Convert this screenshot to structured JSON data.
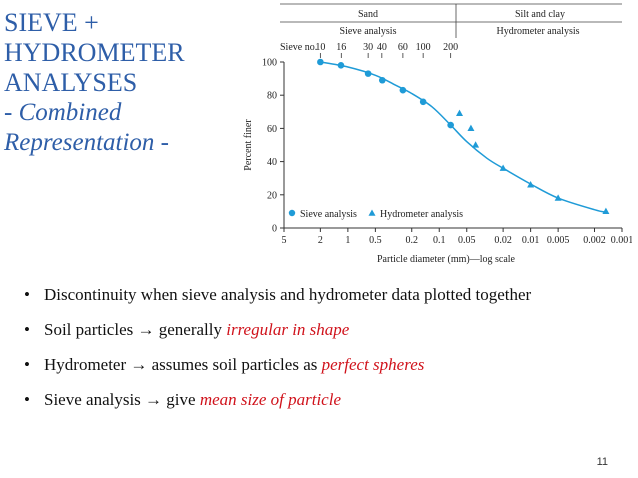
{
  "slide": {
    "title_lines": [
      "SIEVE +",
      "HYDROMETER",
      "ANALYSES"
    ],
    "subtitle_lines": [
      "- Combined",
      "Representation -"
    ],
    "page_number": "11"
  },
  "figure": {
    "header_left": "Sand",
    "header_right": "Silt and clay",
    "sub_left": "Sieve analysis",
    "sub_right": "Hydrometer analysis",
    "sieve_label": "Sieve no.",
    "sieve_numbers": [
      "10",
      "16",
      "30",
      "40",
      "60",
      "100",
      "200"
    ],
    "legend_sieve": "Sieve analysis",
    "legend_hydro": "Hydrometer analysis"
  },
  "chart_data": {
    "type": "scatter",
    "xlabel": "Particle diameter (mm)—log scale",
    "ylabel": "Percent finer",
    "x_scale": "log",
    "x_reversed": true,
    "xlim": [
      5,
      0.001
    ],
    "ylim": [
      0,
      100
    ],
    "x_tick_labels": [
      "5",
      "2",
      "1",
      "0.5",
      "0.2",
      "0.1",
      "0.05",
      "0.02",
      "0.01",
      "0.005",
      "0.002",
      "0.001"
    ],
    "y_tick_labels": [
      "0",
      "20",
      "40",
      "60",
      "80",
      "100"
    ],
    "legend_position": "bottom-left",
    "series": [
      {
        "name": "Sieve analysis",
        "marker": "circle",
        "color": "#1f9bd7",
        "points": [
          [
            2.0,
            100
          ],
          [
            1.19,
            98
          ],
          [
            0.6,
            93
          ],
          [
            0.42,
            89
          ],
          [
            0.25,
            83
          ],
          [
            0.15,
            76
          ],
          [
            0.075,
            62
          ]
        ]
      },
      {
        "name": "Hydrometer analysis",
        "marker": "triangle",
        "color": "#1f9bd7",
        "points": [
          [
            0.06,
            69
          ],
          [
            0.045,
            60
          ],
          [
            0.04,
            50
          ],
          [
            0.02,
            36
          ],
          [
            0.01,
            26
          ],
          [
            0.005,
            18
          ],
          [
            0.0015,
            10
          ]
        ]
      }
    ],
    "curve": {
      "color": "#1f9bd7",
      "points": [
        [
          2.0,
          100
        ],
        [
          1.0,
          97
        ],
        [
          0.5,
          92
        ],
        [
          0.3,
          86
        ],
        [
          0.2,
          81
        ],
        [
          0.12,
          73
        ],
        [
          0.075,
          62
        ],
        [
          0.05,
          52
        ],
        [
          0.03,
          42
        ],
        [
          0.02,
          36
        ],
        [
          0.01,
          26.5
        ],
        [
          0.005,
          18
        ],
        [
          0.002,
          11
        ],
        [
          0.0015,
          9.5
        ]
      ]
    }
  },
  "bullets": [
    {
      "parts": [
        {
          "t": "Discontinuity when sieve analysis and hydrometer data plotted together",
          "s": "normal"
        }
      ]
    },
    {
      "parts": [
        {
          "t": "Soil particles ",
          "s": "normal"
        },
        {
          "t": "→",
          "s": "arrow"
        },
        {
          "t": " generally ",
          "s": "normal"
        },
        {
          "t": "irregular in shape",
          "s": "red"
        }
      ]
    },
    {
      "parts": [
        {
          "t": "Hydrometer ",
          "s": "normal"
        },
        {
          "t": "→",
          "s": "arrow"
        },
        {
          "t": " assumes soil particles as ",
          "s": "normal"
        },
        {
          "t": "perfect spheres",
          "s": "red"
        }
      ]
    },
    {
      "parts": [
        {
          "t": "Sieve analysis ",
          "s": "normal"
        },
        {
          "t": "→",
          "s": "arrow"
        },
        {
          "t": " give ",
          "s": "normal"
        },
        {
          "t": "mean size of particle",
          "s": "red"
        }
      ]
    }
  ],
  "bullet_symbol": "•"
}
